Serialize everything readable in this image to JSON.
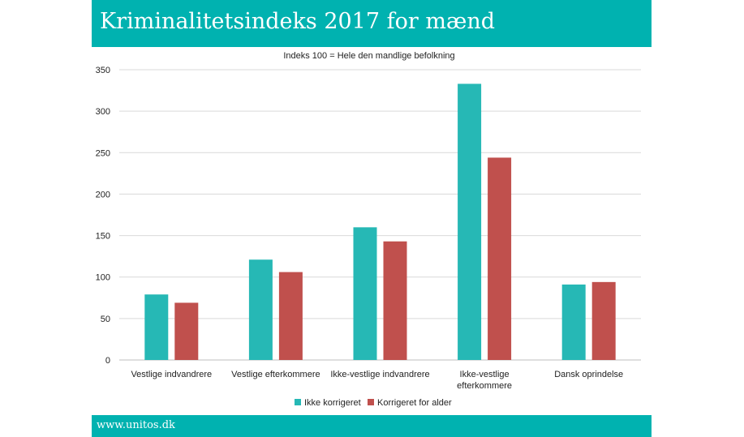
{
  "header": {
    "title": "Kriminalitetsindeks 2017 for mænd"
  },
  "footer": {
    "text": "www.unitos.dk"
  },
  "colors": {
    "brand": "#00b2b0",
    "series1": "#26b8b5",
    "series2": "#c0504d"
  },
  "chart_data": {
    "type": "bar",
    "title": "Kriminalitetsindeks 2017 for mænd",
    "subtitle": "Indeks 100 = Hele den mandlige befolkning",
    "categories": [
      [
        "Vestlige indvandrere"
      ],
      [
        "Vestlige efterkommere"
      ],
      [
        "Ikke-vestlige indvandrere"
      ],
      [
        "Ikke-vestlige",
        "efterkommere"
      ],
      [
        "Dansk oprindelse"
      ]
    ],
    "series": [
      {
        "name": "Ikke korrigeret",
        "color": "#26b8b5",
        "values": [
          79,
          121,
          160,
          333,
          91
        ]
      },
      {
        "name": "Korrigeret for alder",
        "color": "#c0504d",
        "values": [
          69,
          106,
          143,
          244,
          94
        ]
      }
    ],
    "ylim": [
      0,
      350
    ],
    "yticks": [
      0,
      50,
      100,
      150,
      200,
      250,
      300,
      350
    ],
    "grid": true,
    "legend": "bottom"
  }
}
